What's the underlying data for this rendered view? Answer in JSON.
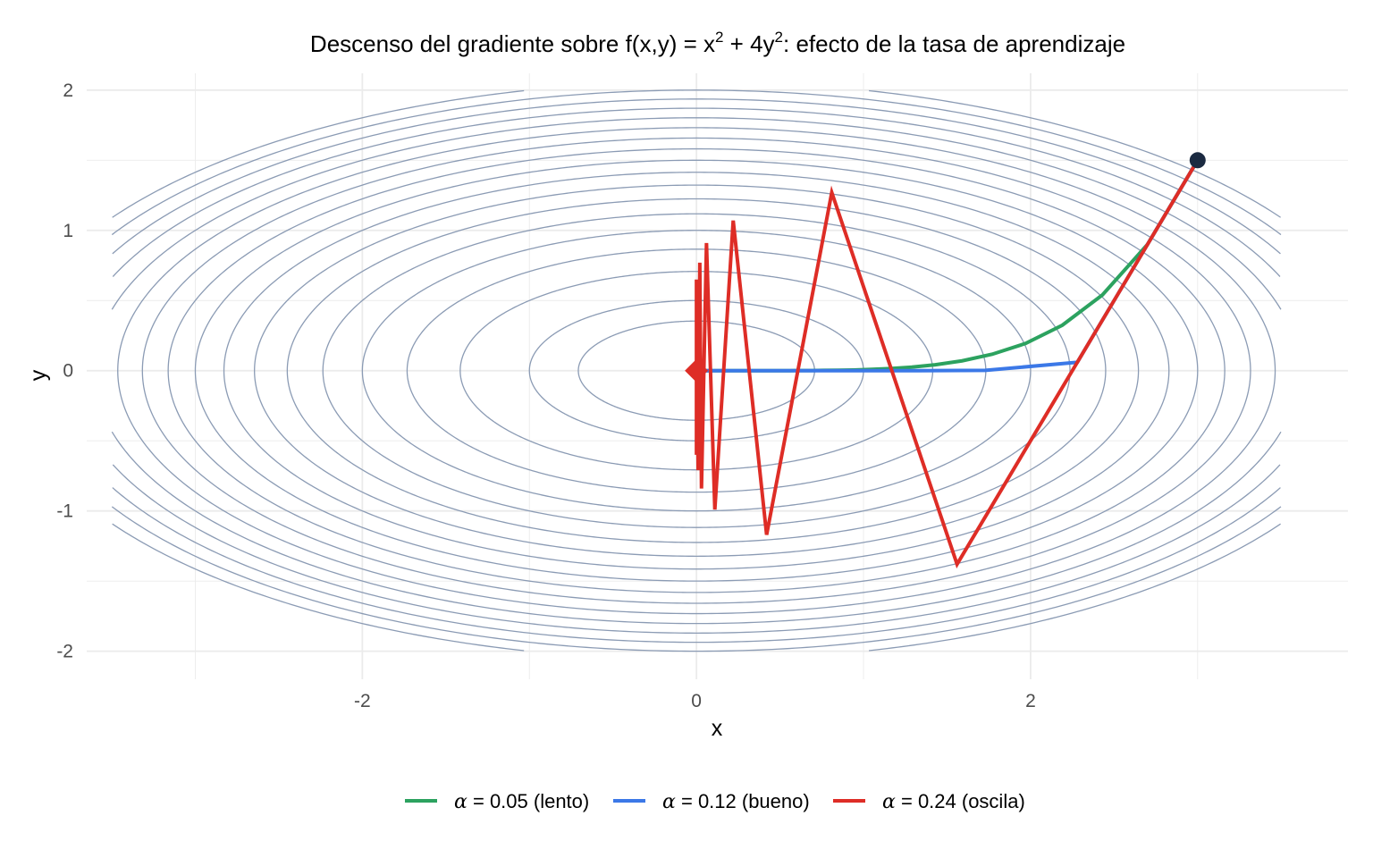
{
  "chart_data": {
    "type": "line",
    "title": {
      "pre": "Descenso del gradiente sobre f(x,y) = x",
      "sup1": "2",
      "mid": " + 4y",
      "sup2": "2",
      "post": ": efecto de la tasa de aprendizaje"
    },
    "xlabel": "x",
    "ylabel": "y",
    "xlim": [
      -3.65,
      3.9
    ],
    "ylim": [
      -2.2,
      2.12
    ],
    "xticks": [
      -2,
      0,
      2
    ],
    "yticks": [
      -2,
      -1,
      0,
      1,
      2
    ],
    "xtick_labels": [
      "-2",
      "0",
      "2"
    ],
    "ytick_labels": [
      "-2",
      "-1",
      "0",
      "1",
      "2"
    ],
    "grid": true,
    "legend_position": "bottom",
    "contour_levels": [
      0.5,
      1,
      2,
      3,
      4,
      5,
      6,
      7,
      8,
      9,
      10,
      11,
      12,
      13,
      14,
      15,
      16,
      17
    ],
    "contour_domain": {
      "x": [
        -3.5,
        3.5
      ],
      "y": [
        -2,
        2
      ]
    },
    "start_point": {
      "x": 3,
      "y": 1.5
    },
    "minimum": {
      "x": 0,
      "y": 0
    },
    "series": [
      {
        "name": "0.05 (lento)",
        "alpha": "α",
        "eq": "=",
        "color": "#2ca25f",
        "points": [
          [
            3,
            1.5
          ],
          [
            2.7,
            0.9
          ],
          [
            2.43,
            0.54
          ],
          [
            2.19,
            0.324
          ],
          [
            1.97,
            0.194
          ],
          [
            1.77,
            0.117
          ],
          [
            1.59,
            0.07
          ],
          [
            1.43,
            0.042
          ],
          [
            1.29,
            0.025
          ],
          [
            1.16,
            0.015
          ],
          [
            1.05,
            0.009
          ],
          [
            0.94,
            0.005
          ],
          [
            0.85,
            0.003
          ],
          [
            0.76,
            0.002
          ],
          [
            0.69,
            0.001
          ],
          [
            0.62,
            0.001
          ],
          [
            0.56,
            0.0
          ],
          [
            0.5,
            0.0
          ],
          [
            0.45,
            0.0
          ],
          [
            0.41,
            0.0
          ],
          [
            0.37,
            0.0
          ],
          [
            0.33,
            0.0
          ],
          [
            0.3,
            0.0
          ],
          [
            0.27,
            0.0
          ],
          [
            0.24,
            0.0
          ],
          [
            0.22,
            0.0
          ],
          [
            0.19,
            0.0
          ],
          [
            0.17,
            0.0
          ],
          [
            0.16,
            0.0
          ],
          [
            0.14,
            0.0
          ],
          [
            0.13,
            0.0
          ],
          [
            0.11,
            0.0
          ],
          [
            0.1,
            0.0
          ],
          [
            0.09,
            0.0
          ],
          [
            0.08,
            0.0
          ],
          [
            0.07,
            0.0
          ],
          [
            0.06,
            0.0
          ],
          [
            0.05,
            0.0
          ]
        ]
      },
      {
        "name": "0.12 (bueno)",
        "alpha": "α",
        "eq": "=",
        "color": "#3b78e7",
        "points": [
          [
            3,
            1.5
          ],
          [
            2.28,
            0.06
          ],
          [
            1.73,
            0.002
          ],
          [
            1.32,
            0.0
          ],
          [
            1.0,
            0.0
          ],
          [
            0.76,
            0.0
          ],
          [
            0.58,
            0.0
          ],
          [
            0.44,
            0.0
          ],
          [
            0.33,
            0.0
          ],
          [
            0.25,
            0.0
          ],
          [
            0.19,
            0.0
          ],
          [
            0.15,
            0.0
          ],
          [
            0.11,
            0.0
          ],
          [
            0.08,
            0.0
          ],
          [
            0.06,
            0.0
          ],
          [
            0.05,
            0.0
          ],
          [
            0.04,
            0.0
          ],
          [
            0.03,
            0.0
          ],
          [
            0.02,
            0.0
          ]
        ]
      },
      {
        "name": "0.24 (oscila)",
        "alpha": "α",
        "eq": "=",
        "color": "#de2d26",
        "points": [
          [
            3,
            1.5
          ],
          [
            1.56,
            -1.38
          ],
          [
            0.81,
            1.27
          ],
          [
            0.42,
            -1.17
          ],
          [
            0.22,
            1.07
          ],
          [
            0.11,
            -0.99
          ],
          [
            0.06,
            0.91
          ],
          [
            0.03,
            -0.84
          ],
          [
            0.02,
            0.77
          ],
          [
            0.01,
            -0.71
          ],
          [
            0.0,
            0.65
          ],
          [
            0.0,
            -0.6
          ],
          [
            0.0,
            0.55
          ],
          [
            0.0,
            -0.51
          ],
          [
            0.0,
            0.47
          ],
          [
            0.0,
            -0.43
          ],
          [
            0.0,
            0.4
          ],
          [
            0.0,
            -0.36
          ],
          [
            0.0,
            0.33
          ],
          [
            0.0,
            -0.31
          ],
          [
            0.0,
            0.28
          ],
          [
            0.0,
            -0.26
          ],
          [
            0.0,
            0.24
          ],
          [
            0.0,
            -0.22
          ],
          [
            0.0,
            0.2
          ],
          [
            0.0,
            -0.19
          ],
          [
            0.0,
            0.17
          ],
          [
            0.0,
            -0.16
          ],
          [
            0.0,
            0.14
          ],
          [
            0.0,
            -0.13
          ],
          [
            0.0,
            0.0
          ]
        ]
      }
    ],
    "colors": {
      "contour": "#8b9bb4",
      "grid": "#ebebeb",
      "start_marker": "#1b2a41",
      "end_marker": "#de2d26"
    }
  }
}
